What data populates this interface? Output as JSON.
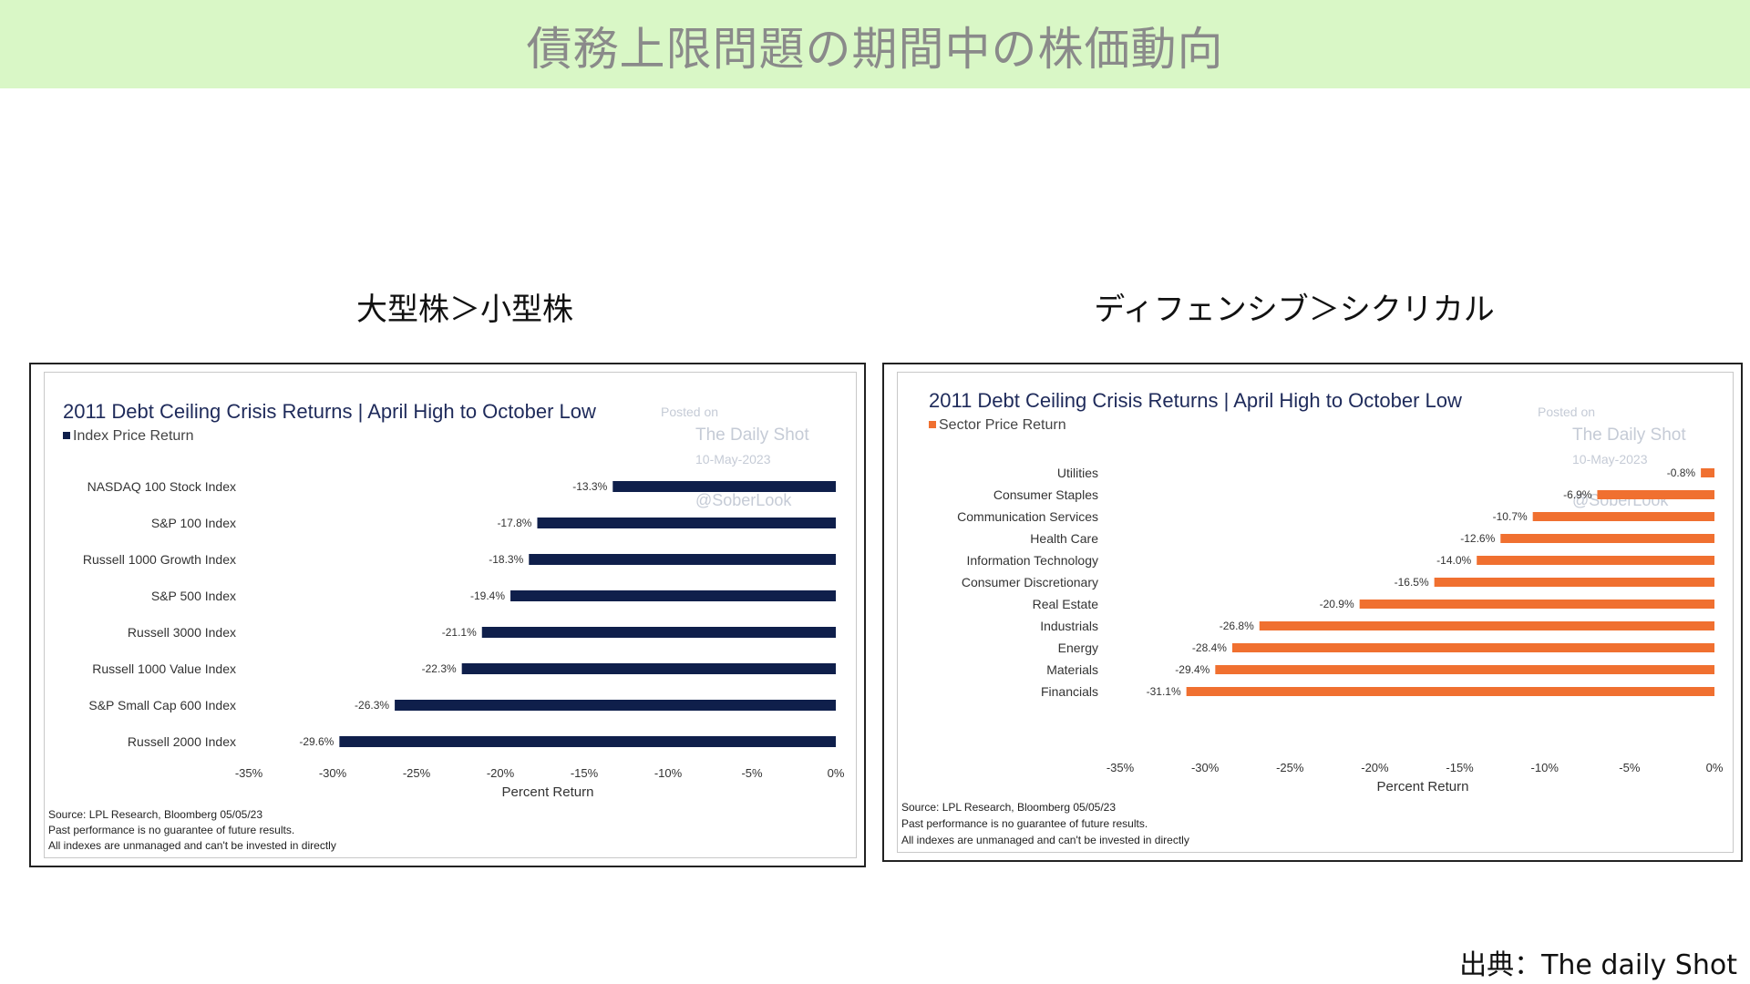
{
  "banner": {
    "title": "債務上限問題の期間中の株価動向",
    "bg": "#d9f7c6"
  },
  "left": {
    "subtitle": "大型株＞小型株"
  },
  "right": {
    "subtitle": "ディフェンシブ＞シクリカル"
  },
  "credit": "出典：The daily Shot",
  "watermark": {
    "posted": "Posted on",
    "brand": "The Daily Shot",
    "date": "10-May-2023",
    "handle": "@SoberLook"
  },
  "source_lines": [
    "Source: LPL Research, Bloomberg 05/05/23",
    "Past performance is no guarantee of future results.",
    "All indexes are unmanaged and can't be invested in directly"
  ],
  "chart_data": [
    {
      "type": "bar",
      "orientation": "horizontal",
      "title": "2011 Debt Ceiling Crisis Returns | April High to October Low",
      "legend": "Index Price Return",
      "color": "#0f1f4b",
      "categories": [
        "NASDAQ 100 Stock Index",
        "S&P 100 Index",
        "Russell 1000 Growth Index",
        "S&P 500 Index",
        "Russell 3000 Index",
        "Russell 1000 Value Index",
        "S&P Small Cap 600 Index",
        "Russell 2000 Index"
      ],
      "values": [
        -13.3,
        -17.8,
        -18.3,
        -19.4,
        -21.1,
        -22.3,
        -26.3,
        -29.6
      ],
      "labels": [
        "-13.3%",
        "-17.8%",
        "-18.3%",
        "-19.4%",
        "-21.1%",
        "-22.3%",
        "-26.3%",
        "-29.6%"
      ],
      "xlabel": "Percent Return",
      "xlim": [
        -35,
        0
      ],
      "ticks": [
        "-35%",
        "-30%",
        "-25%",
        "-20%",
        "-15%",
        "-10%",
        "-5%",
        "0%"
      ]
    },
    {
      "type": "bar",
      "orientation": "horizontal",
      "title": "2011 Debt Ceiling Crisis Returns | April High to October Low",
      "legend": "Sector Price Return",
      "color": "#f07030",
      "categories": [
        "Utilities",
        "Consumer Staples",
        "Communication Services",
        "Health Care",
        "Information Technology",
        "Consumer Discretionary",
        "Real Estate",
        "Industrials",
        "Energy",
        "Materials",
        "Financials"
      ],
      "values": [
        -0.8,
        -6.9,
        -10.7,
        -12.6,
        -14.0,
        -16.5,
        -20.9,
        -26.8,
        -28.4,
        -29.4,
        -31.1
      ],
      "labels": [
        "-0.8%",
        "-6.9%",
        "-10.7%",
        "-12.6%",
        "-14.0%",
        "-16.5%",
        "-20.9%",
        "-26.8%",
        "-28.4%",
        "-29.4%",
        "-31.1%"
      ],
      "xlabel": "Percent Return",
      "xlim": [
        -35,
        0
      ],
      "ticks": [
        "-35%",
        "-30%",
        "-25%",
        "-20%",
        "-15%",
        "-10%",
        "-5%",
        "0%"
      ]
    }
  ]
}
